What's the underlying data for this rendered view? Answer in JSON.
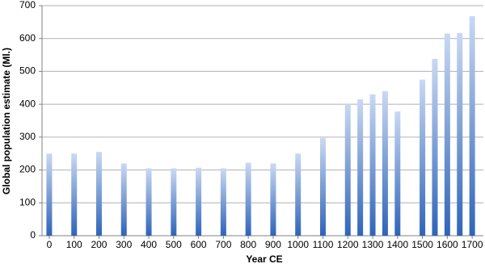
{
  "chart_data": {
    "type": "bar",
    "x_label": "Year CE",
    "y_label": "Global population estimate (Ml.)",
    "x": [
      0,
      100,
      200,
      300,
      400,
      500,
      600,
      700,
      800,
      900,
      1000,
      1100,
      1200,
      1250,
      1300,
      1350,
      1400,
      1500,
      1550,
      1600,
      1650,
      1700
    ],
    "values": [
      250,
      250,
      255,
      220,
      205,
      205,
      207,
      205,
      222,
      220,
      250,
      297,
      400,
      415,
      430,
      440,
      378,
      475,
      538,
      615,
      617,
      668
    ],
    "color": "#2f64b8",
    "xlim": [
      -29,
      1745
    ],
    "xticks": [
      0,
      100,
      200,
      300,
      400,
      500,
      600,
      700,
      800,
      900,
      1000,
      1100,
      1200,
      1300,
      1400,
      1500,
      1600,
      1700
    ],
    "ylim": [
      0,
      700
    ],
    "yticks": [
      0,
      100,
      200,
      300,
      400,
      500,
      600,
      700
    ],
    "grid": true
  }
}
